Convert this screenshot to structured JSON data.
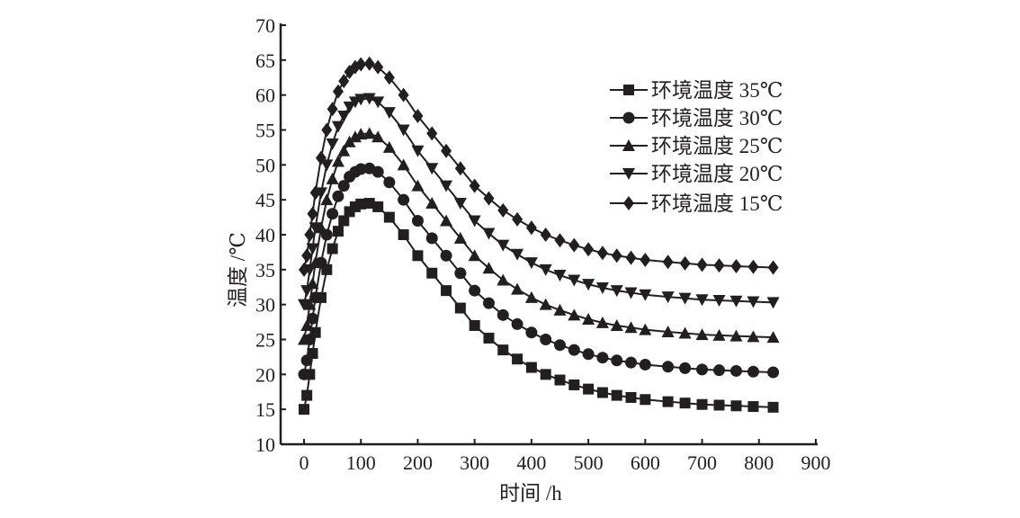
{
  "chart_data": {
    "type": "line",
    "title": "",
    "xlabel": "时间 /h",
    "ylabel": "温度 /℃",
    "xlim": [
      0,
      900
    ],
    "ylim": [
      10,
      70
    ],
    "xticks": [
      "0",
      "100",
      "200",
      "300",
      "400",
      "500",
      "600",
      "700",
      "800",
      "900"
    ],
    "yticks": [
      "10",
      "15",
      "20",
      "25",
      "30",
      "35",
      "40",
      "45",
      "50",
      "55",
      "60",
      "65",
      "70"
    ],
    "grid": false,
    "legend_position": "top-right",
    "x": [
      0,
      5,
      10,
      15,
      20,
      30,
      40,
      50,
      60,
      70,
      80,
      90,
      100,
      115,
      130,
      150,
      175,
      200,
      225,
      250,
      275,
      300,
      325,
      350,
      375,
      400,
      425,
      450,
      475,
      500,
      525,
      550,
      575,
      600,
      640,
      670,
      700,
      730,
      760,
      790,
      825
    ],
    "series": [
      {
        "name": "环境温度 35℃",
        "marker": "square",
        "values": [
          15,
          17,
          20,
          23,
          26,
          31,
          35,
          38,
          40.5,
          42,
          43.3,
          44,
          44.4,
          44.5,
          44,
          42.5,
          40,
          37,
          34.5,
          32,
          29.5,
          27,
          25.2,
          23.5,
          22.2,
          21,
          20,
          19.2,
          18.5,
          17.9,
          17.4,
          17,
          16.7,
          16.4,
          16.1,
          15.9,
          15.7,
          15.6,
          15.5,
          15.4,
          15.3
        ]
      },
      {
        "name": "环境温度 30℃",
        "marker": "circle",
        "values": [
          20,
          22,
          25,
          28,
          31,
          36,
          40,
          43,
          45.5,
          47,
          48.3,
          49,
          49.4,
          49.5,
          49,
          47.5,
          45,
          42,
          39.5,
          37,
          34.5,
          32,
          30.2,
          28.5,
          27.2,
          26,
          25,
          24.2,
          23.5,
          22.9,
          22.4,
          22,
          21.7,
          21.4,
          21.1,
          20.9,
          20.7,
          20.6,
          20.5,
          20.4,
          20.3
        ]
      },
      {
        "name": "环境温度 25℃",
        "marker": "triangle-up",
        "values": [
          25,
          27,
          30,
          33,
          36,
          41,
          45,
          48,
          50.5,
          52,
          53.3,
          54,
          54.4,
          54.5,
          54,
          52.5,
          50,
          47,
          44.5,
          42,
          39.5,
          37,
          35.2,
          33.5,
          32.2,
          31,
          30,
          29.2,
          28.5,
          27.9,
          27.4,
          27,
          26.7,
          26.4,
          26.1,
          25.9,
          25.7,
          25.6,
          25.5,
          25.4,
          25.3
        ]
      },
      {
        "name": "环境温度 20℃",
        "marker": "triangle-down",
        "values": [
          30,
          32,
          35,
          38,
          41,
          46,
          50,
          53,
          55.5,
          57,
          58.3,
          59,
          59.4,
          59.5,
          59,
          57.5,
          55,
          52,
          49.5,
          47,
          44.5,
          42,
          40.2,
          38.5,
          37.2,
          36,
          35,
          34.2,
          33.5,
          32.9,
          32.4,
          32,
          31.7,
          31.4,
          31.1,
          30.9,
          30.7,
          30.6,
          30.5,
          30.4,
          30.3
        ]
      },
      {
        "name": "环境温度 15℃",
        "marker": "diamond",
        "values": [
          35,
          37,
          40,
          43,
          46,
          51,
          55,
          58,
          60.5,
          62,
          63.3,
          64,
          64.4,
          64.5,
          64,
          62.5,
          60,
          57,
          54.5,
          52,
          49.5,
          47,
          45.2,
          43.5,
          42.2,
          41,
          40,
          39.2,
          38.5,
          37.9,
          37.4,
          37,
          36.7,
          36.4,
          36.1,
          35.9,
          35.7,
          35.6,
          35.5,
          35.4,
          35.3
        ]
      }
    ],
    "colors": {
      "line": "#231f20",
      "marker": "#231f20"
    }
  }
}
